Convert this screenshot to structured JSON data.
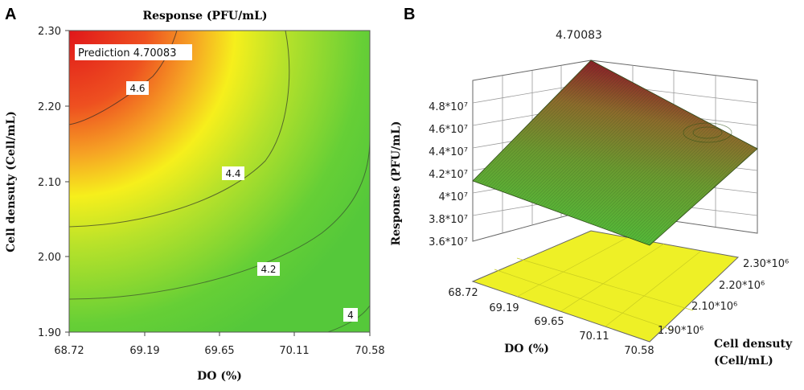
{
  "panels": {
    "a_letter": "A",
    "b_letter": "B"
  },
  "chart_data": [
    {
      "type": "contour",
      "title": "Response (PFU/mL)",
      "xlabel": "DO (%)",
      "ylabel": "Cell densuty (Cell/mL)",
      "xlim": [
        68.72,
        70.58
      ],
      "ylim": [
        1.9,
        2.3
      ],
      "x_ticks": [
        "68.72",
        "69.19",
        "69.65",
        "70.11",
        "70.58"
      ],
      "y_ticks": [
        "1.90",
        "2.00",
        "2.10",
        "2.20",
        "2.30"
      ],
      "contour_levels": [
        "4",
        "4.2",
        "4.4",
        "4.6"
      ],
      "prediction_label": "Prediction 4.70083",
      "colors": {
        "high": "#e5231a",
        "mid": "#f5ef18",
        "low": "#52cc3a"
      }
    },
    {
      "type": "surface3d",
      "peak_label": "4.70083",
      "zlabel": "Response (PFU/mL)",
      "xlabel": "DO (%)",
      "ylabel_line1": "Cell densuty",
      "ylabel_line2": "(Cell/mL)",
      "x_ticks": [
        "68.72",
        "69.19",
        "69.65",
        "70.11",
        "70.58"
      ],
      "y_ticks": [
        "1.90*10⁶",
        "2.10*10⁶",
        "2.20*10⁶",
        "2.30*10⁶"
      ],
      "z_ticks": [
        "3.6*10⁷",
        "3.8*10⁷",
        "4*10⁷",
        "4.2*10⁷",
        "4.4*10⁷",
        "4.6*10⁷",
        "4.8*10⁷"
      ],
      "colors": {
        "surface_high": "#a8232a",
        "surface_low": "#4fb83a",
        "floor": "#eef026"
      }
    }
  ]
}
